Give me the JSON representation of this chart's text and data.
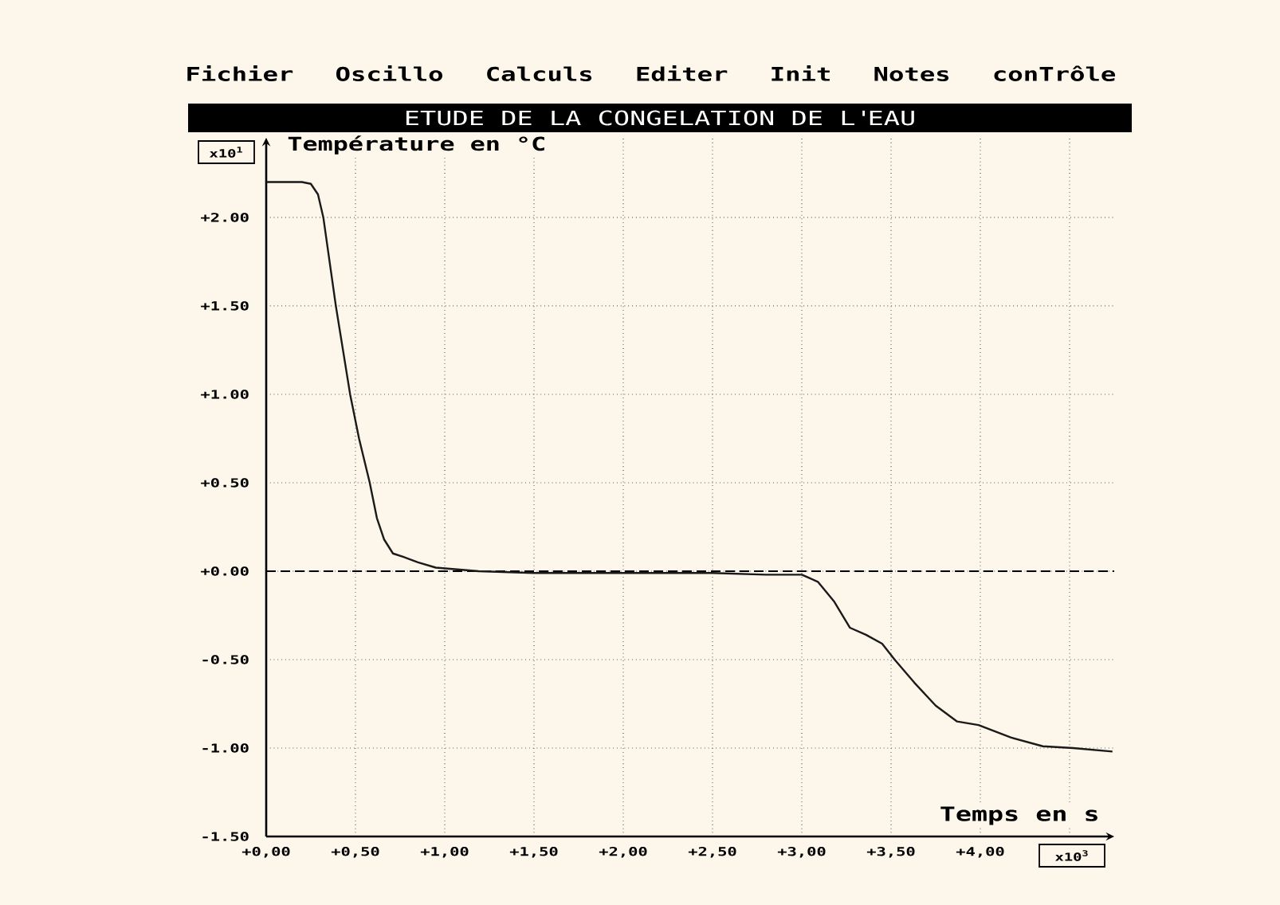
{
  "chart_data": {
    "type": "line",
    "title": "ETUDE DE LA CONGELATION DE L'EAU",
    "xlabel": "Temps en s",
    "ylabel": "Température en °C",
    "annotations": [
      "Fichier Oscillo Calculs Editer Init Notes conTrôle",
      "x10$^{1}$",
      "x10$^{3}$"
    ],
    "series": [
      {
        "color": "#1a1a1a",
        "x": [
          0,
          0.1,
          0.2,
          0.25,
          0.29,
          0.32,
          0.39,
          0.47,
          0.52,
          0.58,
          0.62,
          0.66,
          0.71,
          0.77,
          0.85,
          0.95,
          1.19,
          1.5,
          2.0,
          2.5,
          2.8,
          3.0,
          3.09,
          3.18,
          3.27,
          3.36,
          3.45,
          3.52,
          3.63,
          3.75,
          3.87,
          3.99,
          4.17,
          4.35,
          4.52,
          4.74
        ],
        "values": [
          2.2,
          2.2,
          2.2,
          2.19,
          2.13,
          2.0,
          1.5,
          1.0,
          0.75,
          0.5,
          0.3,
          0.18,
          0.1,
          0.08,
          0.05,
          0.02,
          0.0,
          -0.01,
          -0.01,
          -0.01,
          -0.02,
          -0.02,
          -0.06,
          -0.17,
          -0.32,
          -0.36,
          -0.41,
          -0.5,
          -0.63,
          -0.76,
          -0.85,
          -0.87,
          -0.94,
          -0.99,
          -1.0,
          -1.02
        ]
      }
    ],
    "xlim": [
      0,
      4.75
    ],
    "ylim": [
      -1.5,
      2.45
    ],
    "xticks": [
      {
        "value": 0,
        "label": "+0,00"
      },
      {
        "value": 0.5,
        "label": "+0,50"
      },
      {
        "value": 1,
        "label": "+1,00"
      },
      {
        "value": 1.5,
        "label": "+1,50"
      },
      {
        "value": 2,
        "label": "+2,00"
      },
      {
        "value": 2.5,
        "label": "+2,50"
      },
      {
        "value": 3,
        "label": "+3,00"
      },
      {
        "value": 3.5,
        "label": "+3,50"
      },
      {
        "value": 4,
        "label": "+4,00"
      },
      {
        "value": 4.5,
        "label": null
      }
    ],
    "yticks": [
      {
        "value": -1.5,
        "label": "-1.50"
      },
      {
        "value": -1,
        "label": "-1.00"
      },
      {
        "value": -0.5,
        "label": "-0.50"
      },
      {
        "value": 0,
        "label": "+0.00"
      },
      {
        "value": 0.5,
        "label": "+0.50"
      },
      {
        "value": 1,
        "label": "+1.00"
      },
      {
        "value": 1.5,
        "label": "+1.50"
      },
      {
        "value": 2,
        "label": "+2.00"
      }
    ],
    "grid": true,
    "ref_lines": [
      {
        "axis": "y",
        "value": 0,
        "color": "#000000",
        "line_style": "dashed"
      }
    ]
  }
}
